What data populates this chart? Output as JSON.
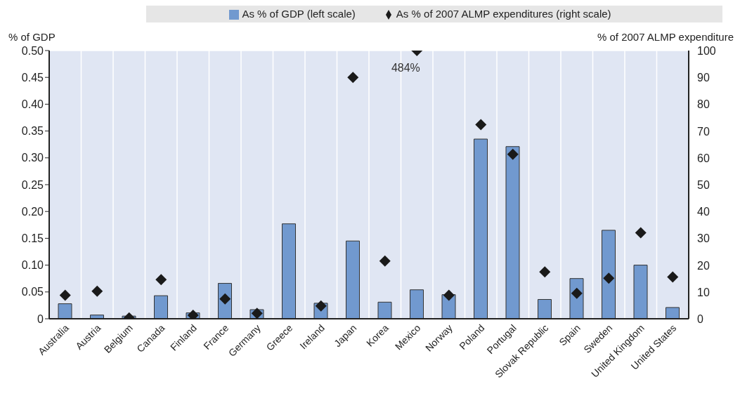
{
  "chart_data": {
    "type": "bar",
    "categories": [
      "Australia",
      "Austria",
      "Belgium",
      "Canada",
      "Finland",
      "France",
      "Germany",
      "Greece",
      "Ireland",
      "Japan",
      "Korea",
      "Mexico",
      "Norway",
      "Poland",
      "Portugal",
      "Slovak Republic",
      "Spain",
      "Sweden",
      "United Kingdom",
      "United States"
    ],
    "series": [
      {
        "name": "As % of GDP (left scale)",
        "color": "#7199cf",
        "values": [
          0.028,
          0.007,
          0.005,
          0.043,
          0.011,
          0.066,
          0.017,
          0.177,
          0.029,
          0.145,
          0.031,
          0.054,
          0.045,
          0.335,
          0.321,
          0.036,
          0.075,
          0.165,
          0.1,
          0.021
        ]
      },
      {
        "name": "As % of 2007 ALMP expenditures (right scale)",
        "type": "scatter",
        "axis": "y2",
        "color": "#1a1a1a",
        "values": [
          8.8,
          10.3,
          0.3,
          14.6,
          1.3,
          7.4,
          2,
          null,
          4.8,
          90,
          21.5,
          100,
          8.8,
          72.4,
          61.3,
          17.5,
          9.5,
          15.1,
          32.1,
          15.6
        ]
      }
    ],
    "ylabel": "% of GDP",
    "y2label": "% of 2007 ALMP expenditure",
    "ylim": [
      0,
      0.5
    ],
    "yticks": [
      {
        "value": 0,
        "label": "0"
      },
      0.05,
      {
        "value": 0.1,
        "label": "0.10"
      },
      0.15,
      {
        "value": 0.2,
        "label": "0.20"
      },
      0.25,
      {
        "value": 0.3,
        "label": "0.30"
      },
      0.35,
      {
        "value": 0.4,
        "label": "0.40"
      },
      0.45,
      {
        "value": 0.5,
        "label": "0.50"
      }
    ],
    "y2lim": [
      0,
      100
    ],
    "y2ticks": [
      0,
      10,
      20,
      30,
      40,
      50,
      60,
      70,
      80,
      90,
      100
    ],
    "annotations": [
      "484%"
    ],
    "grid": true,
    "legend": "top",
    "marker": "diamond"
  }
}
